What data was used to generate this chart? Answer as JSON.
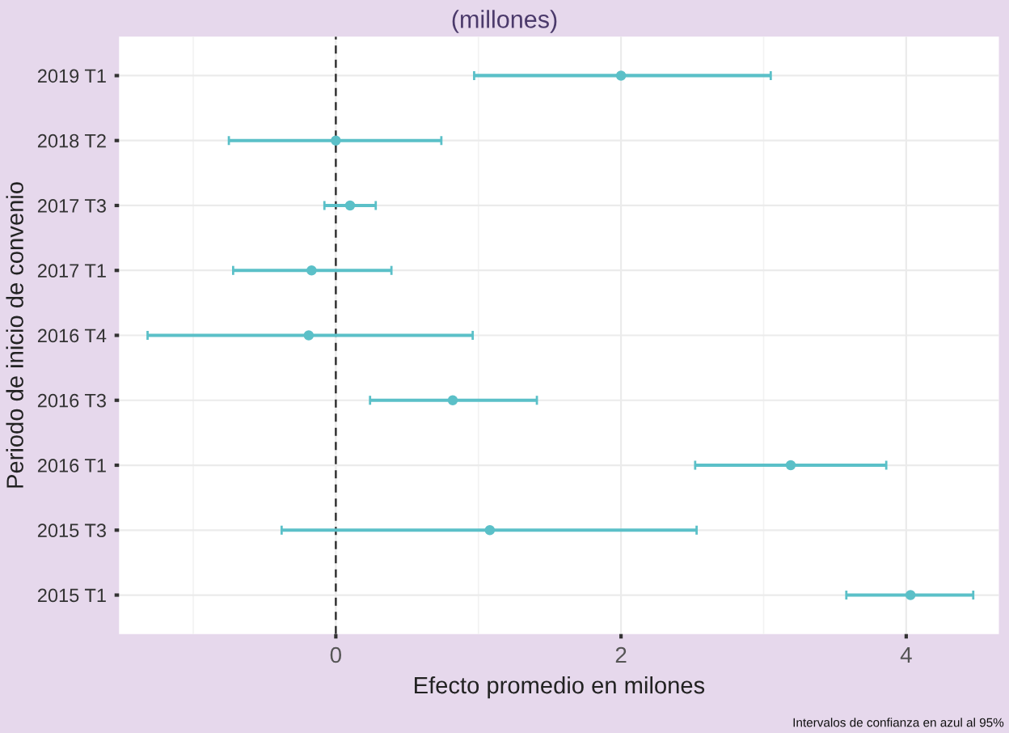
{
  "chart_data": {
    "type": "scatter",
    "orientation": "horizontal",
    "title": "(millones)",
    "xlabel": "Efecto promedio en milones",
    "ylabel": "Periodo de inicio de convenio",
    "categories": [
      "2019 T1",
      "2018 T2",
      "2017 T3",
      "2017 T1",
      "2016 T4",
      "2016 T3",
      "2016 T1",
      "2015 T3",
      "2015 T1"
    ],
    "series": [
      {
        "color": "#5bc0c8",
        "values": [
          2.0,
          0.0,
          0.1,
          -0.17,
          -0.19,
          0.82,
          3.19,
          1.08,
          4.03
        ],
        "errors": [
          [
            0.97,
            3.05
          ],
          [
            -0.75,
            0.74
          ],
          [
            -0.08,
            0.28
          ],
          [
            -0.72,
            0.39
          ],
          [
            -1.32,
            0.96
          ],
          [
            0.24,
            1.41
          ],
          [
            2.52,
            3.86
          ],
          [
            -0.38,
            2.53
          ],
          [
            3.58,
            4.47
          ]
        ]
      }
    ],
    "xlim": [
      -1.52,
      4.65
    ],
    "xticks": [
      0,
      2,
      4
    ],
    "ref_lines": [
      {
        "axis": "x",
        "value": 0,
        "line_style": "dashed",
        "color": "#333333"
      }
    ],
    "grid": true,
    "marker": "circle",
    "annotations": [
      "Intervalos de confianza en azul al 95%"
    ]
  }
}
